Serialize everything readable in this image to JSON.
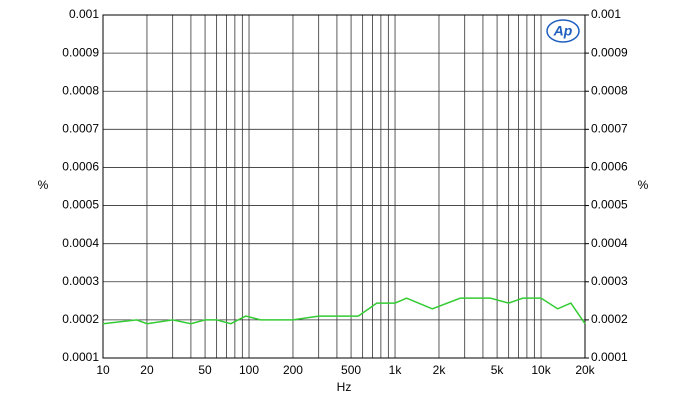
{
  "chart_data": {
    "type": "line",
    "x_label": "Hz",
    "y_label": "%",
    "y2_label": "%",
    "logo": "Ap",
    "x_scale": "log",
    "xlim": [
      10,
      20000
    ],
    "xticks": [
      10,
      20,
      50,
      100,
      200,
      500,
      {
        "value": 1000,
        "label": "1k"
      },
      {
        "value": 2000,
        "label": "2k"
      },
      {
        "value": 5000,
        "label": "5k"
      },
      {
        "value": 10000,
        "label": "10k"
      },
      {
        "value": 20000,
        "label": "20k"
      }
    ],
    "xgrid": [
      30,
      40,
      60,
      70,
      80,
      90,
      300,
      400,
      600,
      700,
      800,
      900,
      3000,
      4000,
      6000,
      7000,
      8000,
      9000
    ],
    "ylim": [
      0.0001,
      0.001
    ],
    "yticks": [
      0.0001,
      0.0002,
      0.0003,
      0.0004,
      0.0005,
      0.0006,
      0.0007,
      0.0008,
      0.0009,
      0.001
    ],
    "y2lim": [
      0.0001,
      0.001
    ],
    "y2ticks": [
      0.0001,
      0.0002,
      0.0003,
      0.0004,
      0.0005,
      0.0006,
      0.0007,
      0.0008,
      0.0009,
      0.001
    ],
    "grid": true,
    "x": [
      10,
      17,
      20,
      30,
      40,
      50,
      60,
      75,
      95,
      120,
      200,
      300,
      500,
      560,
      750,
      1000,
      1200,
      1800,
      2800,
      4500,
      6000,
      7500,
      10000,
      13000,
      16000,
      20000
    ],
    "series": [
      {
        "color": "#33cc33",
        "values": [
          0.00019,
          0.0002,
          0.00019,
          0.0002,
          0.00019,
          0.0002,
          0.0002,
          0.00019,
          0.00021,
          0.0002,
          0.0002,
          0.00021,
          0.00021,
          0.00021,
          0.000244,
          0.000244,
          0.000257,
          0.000229,
          0.000257,
          0.000257,
          0.000244,
          0.000257,
          0.000257,
          0.000229,
          0.000244,
          0.00019
        ]
      }
    ]
  }
}
